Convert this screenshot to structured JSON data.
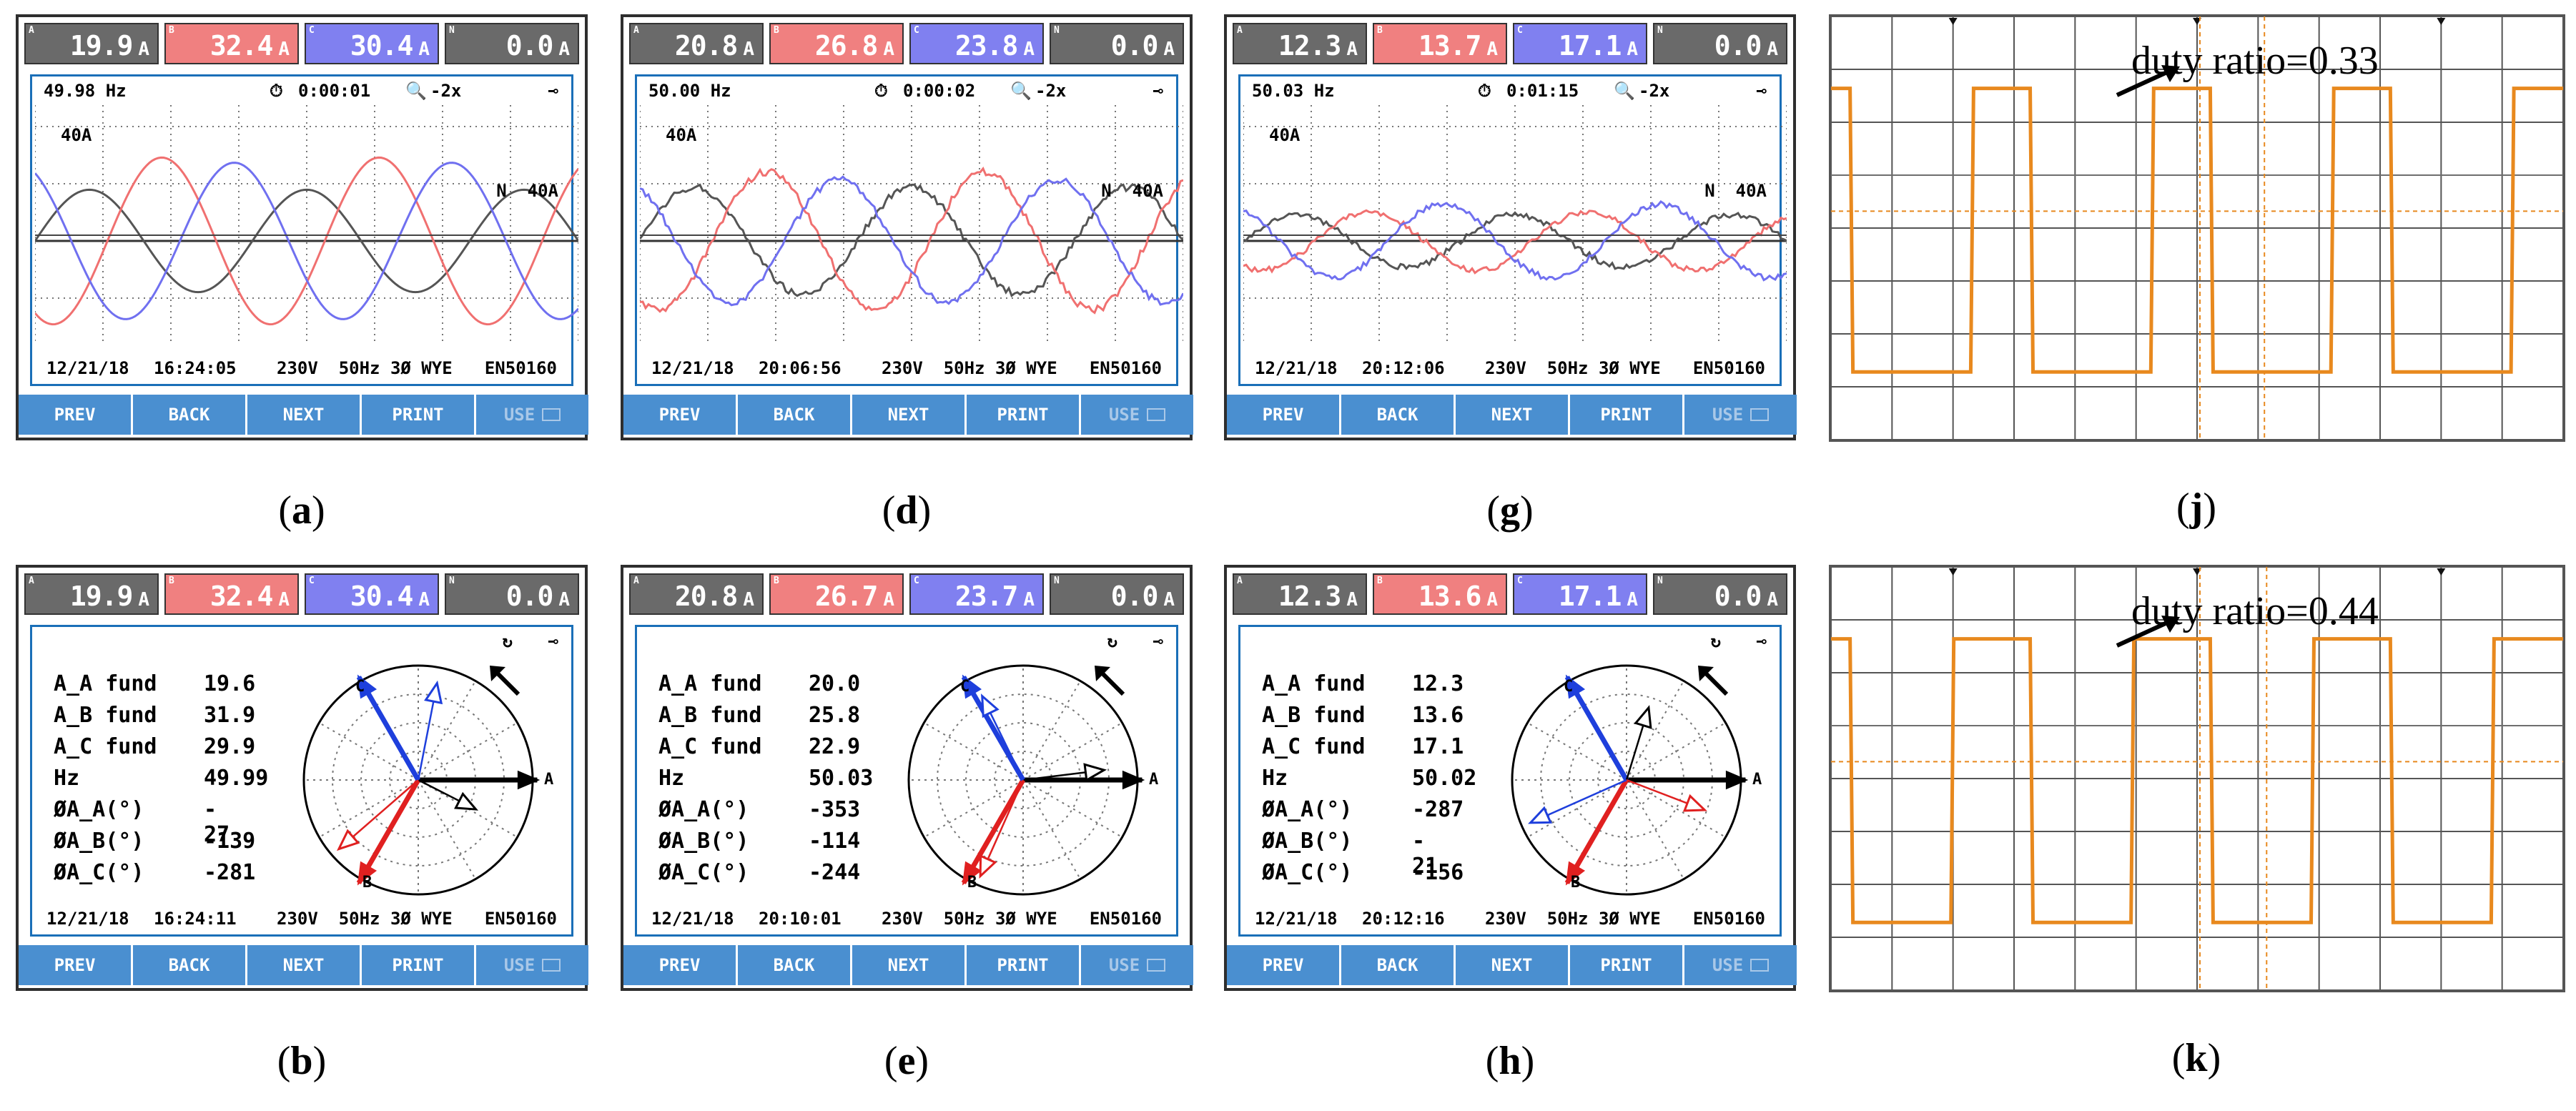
{
  "colors": {
    "phase_a": "#555555",
    "phase_b": "#f07070",
    "phase_c": "#7070f0",
    "neutral": "#444444",
    "accent": "#4a8fd0",
    "scope_trace": "#e8891e"
  },
  "buttons": [
    "PREV",
    "BACK",
    "NEXT",
    "PRINT",
    "USE"
  ],
  "panels": {
    "a": {
      "caption": "a",
      "tiles": [
        "19.9",
        "32.4",
        "30.4",
        "0.0"
      ],
      "unit": "A",
      "freq": "49.98 Hz",
      "time": "0:00:01",
      "zoom": "-2x",
      "scale_label": "40A",
      "neutral_label": "N  40A",
      "footer_date": "12/21/18",
      "footer_time": "16:24:05",
      "footer_info": "230V  50Hz 3Ø WYE",
      "footer_std": "EN50160"
    },
    "d": {
      "caption": "d",
      "tiles": [
        "20.8",
        "26.8",
        "23.8",
        "0.0"
      ],
      "unit": "A",
      "freq": "50.00 Hz",
      "time": "0:00:02",
      "zoom": "-2x",
      "scale_label": "40A",
      "neutral_label": "N  40A",
      "footer_date": "12/21/18",
      "footer_time": "20:06:56",
      "footer_info": "230V  50Hz 3Ø WYE",
      "footer_std": "EN50160"
    },
    "g": {
      "caption": "g",
      "tiles": [
        "12.3",
        "13.7",
        "17.1",
        "0.0"
      ],
      "unit": "A",
      "freq": "50.03 Hz",
      "time": "0:01:15",
      "zoom": "-2x",
      "scale_label": "40A",
      "neutral_label": "N  40A",
      "footer_date": "12/21/18",
      "footer_time": "20:12:06",
      "footer_info": "230V  50Hz 3Ø WYE",
      "footer_std": "EN50160"
    },
    "b": {
      "caption": "b",
      "tiles": [
        "19.9",
        "32.4",
        "30.4",
        "0.0"
      ],
      "unit": "A",
      "readings": [
        [
          "A_A fund",
          "19.6"
        ],
        [
          "A_B fund",
          "31.9"
        ],
        [
          "A_C fund",
          "29.9"
        ],
        [
          "Hz",
          "49.99"
        ],
        [
          "ØA_A(°)",
          "- 27"
        ],
        [
          "ØA_B(°)",
          "-139"
        ],
        [
          "ØA_C(°)",
          "-281"
        ]
      ],
      "footer_date": "12/21/18",
      "footer_time": "16:24:11",
      "footer_info": "230V  50Hz 3Ø WYE",
      "footer_std": "EN50160"
    },
    "e": {
      "caption": "e",
      "tiles": [
        "20.8",
        "26.7",
        "23.7",
        "0.0"
      ],
      "unit": "A",
      "readings": [
        [
          "A_A fund",
          "20.0"
        ],
        [
          "A_B fund",
          "25.8"
        ],
        [
          "A_C fund",
          "22.9"
        ],
        [
          "Hz",
          "50.03"
        ],
        [
          "ØA_A(°)",
          "-353"
        ],
        [
          "ØA_B(°)",
          "-114"
        ],
        [
          "ØA_C(°)",
          "-244"
        ]
      ],
      "footer_date": "12/21/18",
      "footer_time": "20:10:01",
      "footer_info": "230V  50Hz 3Ø WYE",
      "footer_std": "EN50160"
    },
    "h": {
      "caption": "h",
      "tiles": [
        "12.3",
        "13.6",
        "17.1",
        "0.0"
      ],
      "unit": "A",
      "readings": [
        [
          "A_A fund",
          "12.3"
        ],
        [
          "A_B fund",
          "13.6"
        ],
        [
          "A_C fund",
          "17.1"
        ],
        [
          "Hz",
          "50.02"
        ],
        [
          "ØA_A(°)",
          "-287"
        ],
        [
          "ØA_B(°)",
          "- 21"
        ],
        [
          "ØA_C(°)",
          "-156"
        ]
      ],
      "footer_date": "12/21/18",
      "footer_time": "20:12:16",
      "footer_info": "230V  50Hz 3Ø WYE",
      "footer_std": "EN50160"
    },
    "j": {
      "caption": "j",
      "annotation": "duty ratio=0.33",
      "duty": 0.33
    },
    "k": {
      "caption": "k",
      "annotation": "duty ratio=0.44",
      "duty": 0.44
    }
  },
  "phase_labels": {
    "a": "A",
    "b": "B",
    "c": "C"
  }
}
